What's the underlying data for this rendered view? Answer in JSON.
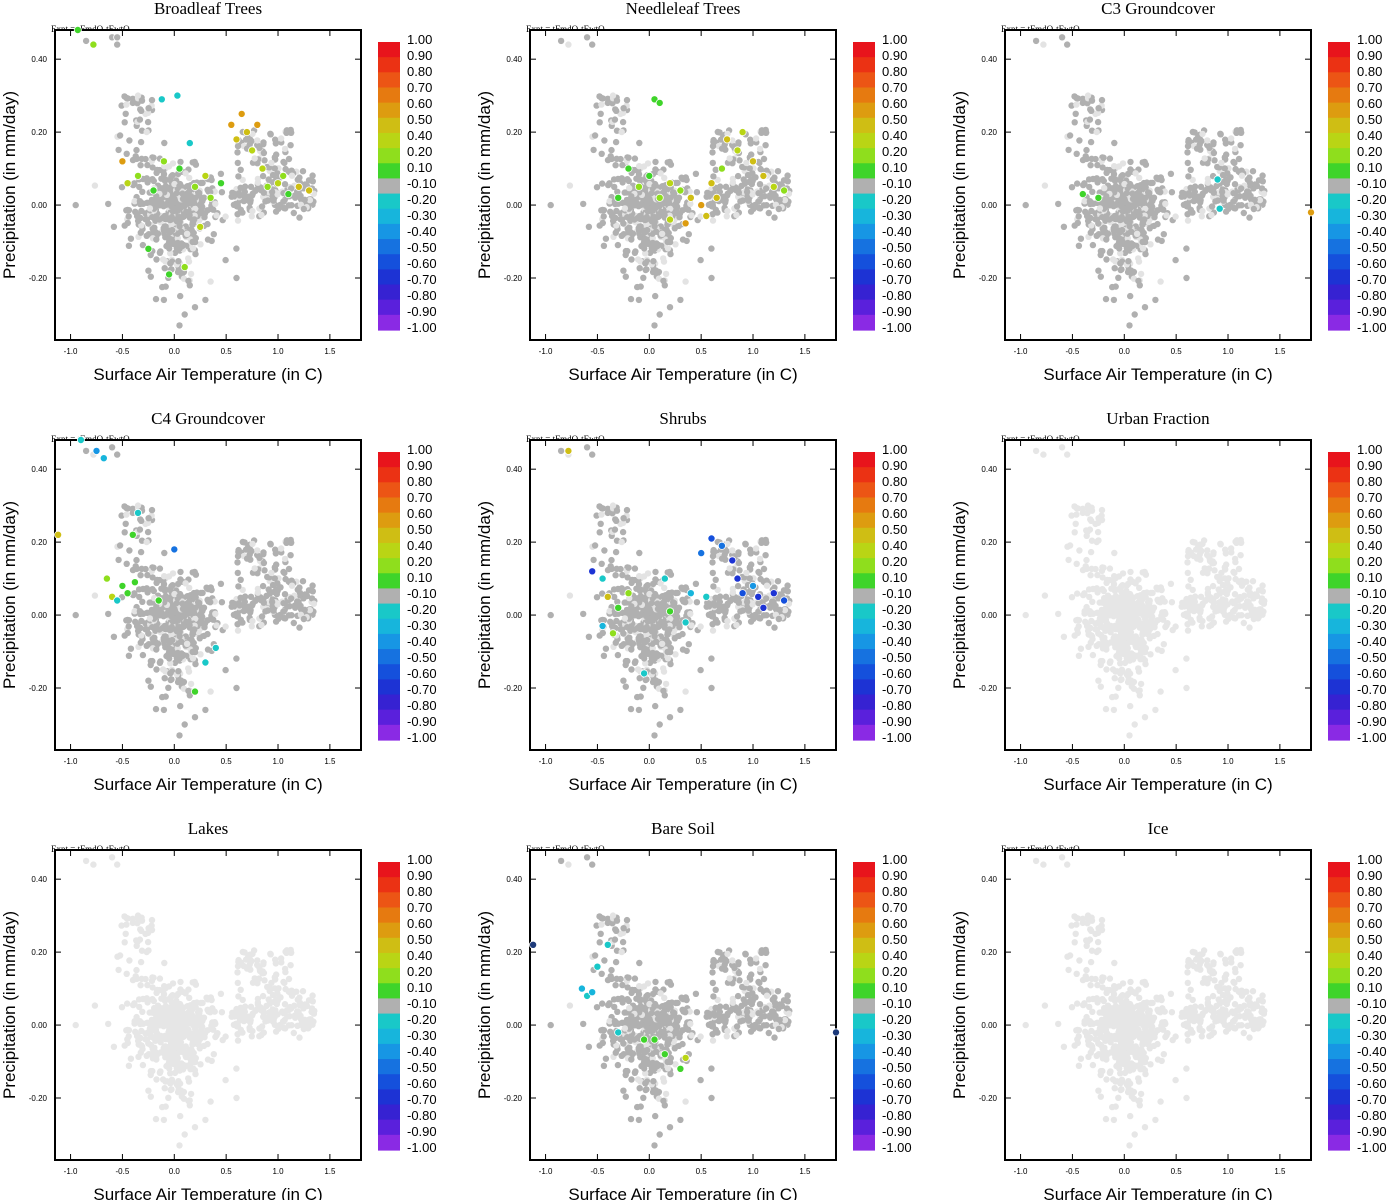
{
  "figure": {
    "expt_label": "Expt = tFmdO-tEwtO",
    "xlabel": "Surface Air Temperature (in C)",
    "ylabel": "Precipitation (in mm/day)",
    "xlim": [
      -1.15,
      1.8
    ],
    "ylim": [
      -0.37,
      0.48
    ],
    "xticks": [
      -1.0,
      -0.5,
      0.0,
      0.5,
      1.0,
      1.5
    ],
    "xtick_labels": [
      "-1.0",
      "-0.5",
      "0.0",
      "0.5",
      "1.0",
      "1.5"
    ],
    "yticks": [
      -0.2,
      0.0,
      0.2,
      0.4
    ],
    "ytick_labels": [
      "-0.20",
      "0.00",
      "0.20",
      "0.40"
    ],
    "colorbar": {
      "labels": [
        "1.00",
        "0.90",
        "0.80",
        "0.70",
        "0.60",
        "0.50",
        "0.40",
        "0.20",
        "0.10",
        "-0.10",
        "-0.20",
        "-0.30",
        "-0.40",
        "-0.50",
        "-0.60",
        "-0.70",
        "-0.80",
        "-0.90",
        "-1.00"
      ],
      "colors": [
        "#e8141c",
        "#eb3214",
        "#ec5515",
        "#e67a10",
        "#dd9c10",
        "#cfbe14",
        "#b9d515",
        "#8fde1d",
        "#3fd42a",
        "#b0b0b0",
        "#19c8c8",
        "#17b5dc",
        "#1796e4",
        "#1672e0",
        "#1550dc",
        "#1d33d4",
        "#3622d2",
        "#5a20dc",
        "#8a2ae4"
      ]
    }
  },
  "chart_data": [
    {
      "type": "scatter",
      "title": "Broadleaf Trees",
      "xlabel": "Surface Air Temperature (in C)",
      "ylabel": "Precipitation (in mm/day)",
      "xlim": [
        -1.15,
        1.8
      ],
      "ylim": [
        -0.37,
        0.48
      ],
      "neutral": "#b0b0b0",
      "background": "#e3e3e3",
      "dim_background": false,
      "points": [
        [
          -0.93,
          0.48,
          "#3fd42a"
        ],
        [
          -0.85,
          0.45,
          "#b0b0b0"
        ],
        [
          -0.78,
          0.44,
          "#8fde1d"
        ],
        [
          -0.55,
          0.46,
          "#b0b0b0"
        ],
        [
          -0.12,
          0.29,
          "#19c8c8"
        ],
        [
          0.03,
          0.3,
          "#19c8c8"
        ],
        [
          -0.5,
          0.12,
          "#dd9c10"
        ],
        [
          -0.45,
          0.06,
          "#b9d515"
        ],
        [
          -0.35,
          0.08,
          "#8fde1d"
        ],
        [
          -0.2,
          0.04,
          "#3fd42a"
        ],
        [
          -0.1,
          0.12,
          "#8fde1d"
        ],
        [
          0.05,
          0.1,
          "#3fd42a"
        ],
        [
          0.2,
          0.05,
          "#8fde1d"
        ],
        [
          0.3,
          0.08,
          "#b9d515"
        ],
        [
          0.35,
          0.02,
          "#8fde1d"
        ],
        [
          0.45,
          0.06,
          "#3fd42a"
        ],
        [
          0.55,
          0.22,
          "#dd9c10"
        ],
        [
          0.6,
          0.18,
          "#cfbe14"
        ],
        [
          0.65,
          0.25,
          "#dd9c10"
        ],
        [
          0.7,
          0.2,
          "#cfbe14"
        ],
        [
          0.75,
          0.15,
          "#b9d515"
        ],
        [
          0.8,
          0.22,
          "#dd9c10"
        ],
        [
          0.85,
          0.1,
          "#b9d515"
        ],
        [
          0.9,
          0.05,
          "#8fde1d"
        ],
        [
          1.0,
          0.06,
          "#b9d515"
        ],
        [
          1.05,
          0.08,
          "#8fde1d"
        ],
        [
          1.1,
          0.03,
          "#3fd42a"
        ],
        [
          1.2,
          0.05,
          "#cfbe14"
        ],
        [
          1.3,
          0.04,
          "#cfbe14"
        ],
        [
          -0.25,
          -0.12,
          "#3fd42a"
        ],
        [
          -0.05,
          -0.19,
          "#3fd42a"
        ],
        [
          0.1,
          -0.17,
          "#8fde1d"
        ],
        [
          0.25,
          -0.06,
          "#b9d515"
        ],
        [
          0.15,
          0.17,
          "#19c8c8"
        ]
      ]
    },
    {
      "type": "scatter",
      "title": "Needleleaf Trees",
      "xlabel": "Surface Air Temperature (in C)",
      "ylabel": "Precipitation (in mm/day)",
      "xlim": [
        -1.15,
        1.8
      ],
      "ylim": [
        -0.37,
        0.48
      ],
      "neutral": "#b0b0b0",
      "background": "#e3e3e3",
      "dim_background": false,
      "points": [
        [
          0.05,
          0.29,
          "#3fd42a"
        ],
        [
          0.1,
          0.28,
          "#3fd42a"
        ],
        [
          -0.2,
          0.1,
          "#3fd42a"
        ],
        [
          -0.1,
          0.05,
          "#8fde1d"
        ],
        [
          0.0,
          0.08,
          "#3fd42a"
        ],
        [
          0.1,
          0.02,
          "#8fde1d"
        ],
        [
          0.2,
          0.06,
          "#b9d515"
        ],
        [
          0.3,
          0.04,
          "#8fde1d"
        ],
        [
          0.4,
          0.02,
          "#cfbe14"
        ],
        [
          0.5,
          0.0,
          "#dd9c10"
        ],
        [
          0.6,
          0.06,
          "#cfbe14"
        ],
        [
          0.7,
          0.1,
          "#8fde1d"
        ],
        [
          0.75,
          0.18,
          "#cfbe14"
        ],
        [
          0.85,
          0.15,
          "#b9d515"
        ],
        [
          0.9,
          0.2,
          "#b9d515"
        ],
        [
          1.0,
          0.12,
          "#cfbe14"
        ],
        [
          1.1,
          0.08,
          "#cfbe14"
        ],
        [
          1.2,
          0.05,
          "#b9d515"
        ],
        [
          1.3,
          0.04,
          "#8fde1d"
        ],
        [
          -0.3,
          0.02,
          "#3fd42a"
        ],
        [
          0.2,
          -0.04,
          "#b9d515"
        ],
        [
          0.35,
          -0.05,
          "#dd9c10"
        ],
        [
          0.55,
          -0.03,
          "#cfbe14"
        ],
        [
          0.65,
          0.02,
          "#cfbe14"
        ]
      ]
    },
    {
      "type": "scatter",
      "title": "C3 Groundcover",
      "xlabel": "Surface Air Temperature (in C)",
      "ylabel": "Precipitation (in mm/day)",
      "xlim": [
        -1.15,
        1.8
      ],
      "ylim": [
        -0.37,
        0.48
      ],
      "neutral": "#b0b0b0",
      "background": "#e3e3e3",
      "dim_background": false,
      "points": [
        [
          -0.4,
          0.03,
          "#3fd42a"
        ],
        [
          -0.25,
          0.02,
          "#3fd42a"
        ],
        [
          0.9,
          0.07,
          "#19c8c8"
        ],
        [
          0.92,
          -0.01,
          "#19c8c8"
        ],
        [
          1.8,
          -0.02,
          "#dd9c10"
        ]
      ]
    },
    {
      "type": "scatter",
      "title": "C4 Groundcover",
      "xlabel": "Surface Air Temperature (in C)",
      "ylabel": "Precipitation (in mm/day)",
      "xlim": [
        -1.15,
        1.8
      ],
      "ylim": [
        -0.37,
        0.48
      ],
      "neutral": "#b0b0b0",
      "background": "#e3e3e3",
      "dim_background": false,
      "points": [
        [
          -1.12,
          0.22,
          "#cfbe14"
        ],
        [
          -0.9,
          0.48,
          "#19c8c8"
        ],
        [
          -0.75,
          0.45,
          "#1796e4"
        ],
        [
          -0.68,
          0.43,
          "#17b5dc"
        ],
        [
          -0.35,
          0.28,
          "#19c8c8"
        ],
        [
          -0.4,
          0.22,
          "#3fd42a"
        ],
        [
          -0.65,
          0.1,
          "#8fde1d"
        ],
        [
          -0.6,
          0.05,
          "#b9d515"
        ],
        [
          -0.5,
          0.08,
          "#3fd42a"
        ],
        [
          -0.45,
          0.06,
          "#3fd42a"
        ],
        [
          -0.38,
          0.09,
          "#3fd42a"
        ],
        [
          -0.55,
          0.04,
          "#19c8c8"
        ],
        [
          -0.15,
          0.04,
          "#3fd42a"
        ],
        [
          0.0,
          0.18,
          "#1672e0"
        ],
        [
          0.4,
          -0.09,
          "#19c8c8"
        ],
        [
          0.3,
          -0.13,
          "#19c8c8"
        ],
        [
          0.2,
          -0.21,
          "#3fd42a"
        ]
      ]
    },
    {
      "type": "scatter",
      "title": "Shrubs",
      "xlabel": "Surface Air Temperature (in C)",
      "ylabel": "Precipitation (in mm/day)",
      "xlim": [
        -1.15,
        1.8
      ],
      "ylim": [
        -0.37,
        0.48
      ],
      "neutral": "#b0b0b0",
      "background": "#e3e3e3",
      "dim_background": false,
      "points": [
        [
          -0.78,
          0.45,
          "#cfbe14"
        ],
        [
          -0.55,
          0.12,
          "#1d33d4"
        ],
        [
          -0.45,
          0.1,
          "#19c8c8"
        ],
        [
          -0.4,
          0.05,
          "#cfbe14"
        ],
        [
          -0.3,
          0.02,
          "#3fd42a"
        ],
        [
          -0.2,
          0.06,
          "#8fde1d"
        ],
        [
          0.2,
          0.01,
          "#3fd42a"
        ],
        [
          0.5,
          0.17,
          "#1672e0"
        ],
        [
          0.6,
          0.21,
          "#1550dc"
        ],
        [
          0.7,
          0.19,
          "#1672e0"
        ],
        [
          0.8,
          0.15,
          "#1d33d4"
        ],
        [
          0.85,
          0.1,
          "#1d33d4"
        ],
        [
          0.9,
          0.06,
          "#1550dc"
        ],
        [
          1.0,
          0.08,
          "#1796e4"
        ],
        [
          1.05,
          0.05,
          "#1d33d4"
        ],
        [
          1.1,
          0.02,
          "#1d33d4"
        ],
        [
          1.2,
          0.06,
          "#1d33d4"
        ],
        [
          1.3,
          0.04,
          "#1550dc"
        ],
        [
          0.4,
          0.06,
          "#17b5dc"
        ],
        [
          0.55,
          0.05,
          "#19c8c8"
        ],
        [
          0.35,
          -0.02,
          "#19c8c8"
        ],
        [
          0.15,
          0.1,
          "#19c8c8"
        ],
        [
          -0.45,
          -0.03,
          "#17b5dc"
        ],
        [
          -0.05,
          -0.16,
          "#19c8c8"
        ],
        [
          -0.35,
          -0.05,
          "#8fde1d"
        ]
      ]
    },
    {
      "type": "scatter",
      "title": "Urban Fraction",
      "xlabel": "Surface Air Temperature (in C)",
      "ylabel": "Precipitation (in mm/day)",
      "xlim": [
        -1.15,
        1.8
      ],
      "ylim": [
        -0.37,
        0.48
      ],
      "neutral": "#b0b0b0",
      "background": "#e3e3e3",
      "dim_background": true,
      "points": []
    },
    {
      "type": "scatter",
      "title": "Lakes",
      "xlabel": "Surface Air Temperature (in C)",
      "ylabel": "Precipitation (in mm/day)",
      "xlim": [
        -1.15,
        1.8
      ],
      "ylim": [
        -0.37,
        0.48
      ],
      "neutral": "#b0b0b0",
      "background": "#e3e3e3",
      "dim_background": true,
      "points": []
    },
    {
      "type": "scatter",
      "title": "Bare Soil",
      "xlabel": "Surface Air Temperature (in C)",
      "ylabel": "Precipitation (in mm/day)",
      "xlim": [
        -1.15,
        1.8
      ],
      "ylim": [
        -0.37,
        0.48
      ],
      "neutral": "#b0b0b0",
      "background": "#e3e3e3",
      "dim_background": false,
      "points": [
        [
          -1.12,
          0.22,
          "#1d3a7a"
        ],
        [
          -0.4,
          0.22,
          "#19c8c8"
        ],
        [
          -0.5,
          0.16,
          "#19c8c8"
        ],
        [
          -0.65,
          0.1,
          "#17b5dc"
        ],
        [
          -0.6,
          0.08,
          "#19c8c8"
        ],
        [
          -0.55,
          0.09,
          "#17b5dc"
        ],
        [
          -0.3,
          -0.02,
          "#19c8c8"
        ],
        [
          -0.05,
          -0.04,
          "#3fd42a"
        ],
        [
          0.05,
          -0.04,
          "#3fd42a"
        ],
        [
          0.15,
          -0.08,
          "#3fd42a"
        ],
        [
          0.3,
          -0.12,
          "#3fd42a"
        ],
        [
          0.35,
          -0.09,
          "#b9d515"
        ],
        [
          1.8,
          -0.02,
          "#1d3a7a"
        ]
      ]
    },
    {
      "type": "scatter",
      "title": "Ice",
      "xlabel": "Surface Air Temperature (in C)",
      "ylabel": "Precipitation (in mm/day)",
      "xlim": [
        -1.15,
        1.8
      ],
      "ylim": [
        -0.37,
        0.48
      ],
      "neutral": "#b0b0b0",
      "background": "#e3e3e3",
      "dim_background": true,
      "points": []
    }
  ]
}
